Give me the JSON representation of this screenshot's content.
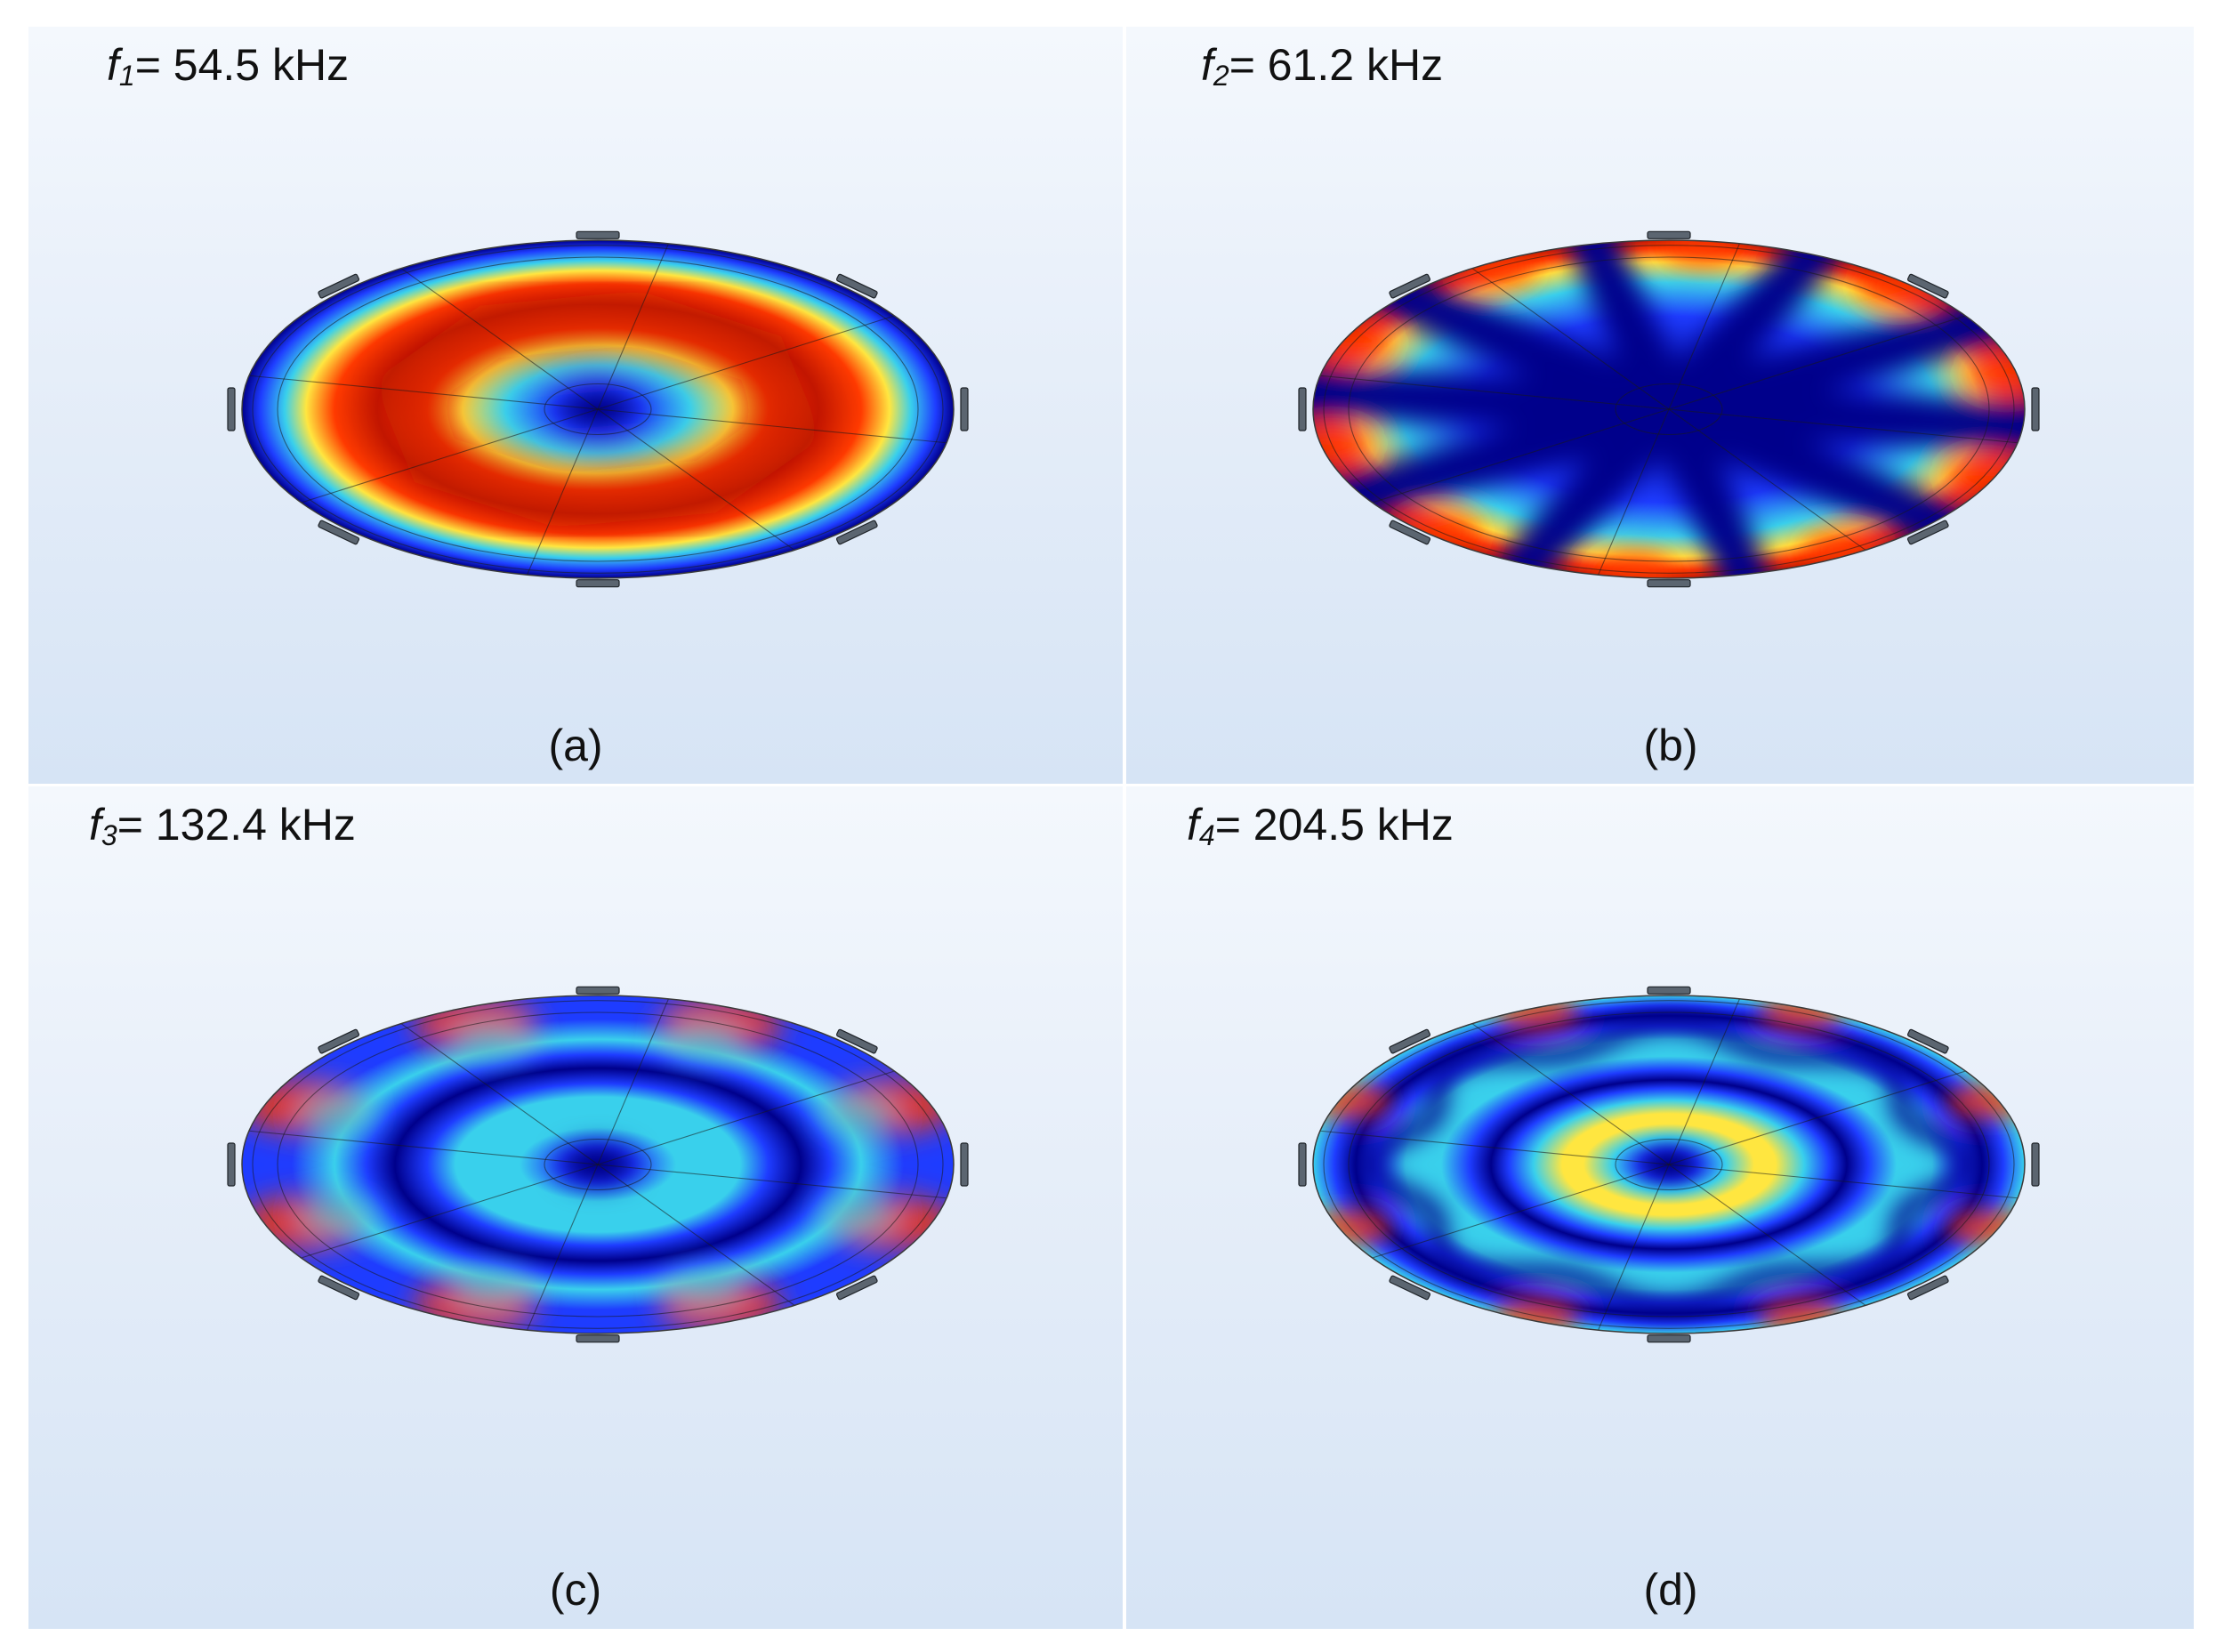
{
  "panels": [
    {
      "id": "a",
      "symbol": "f",
      "sub": "1",
      "value": "= 54.5 kHz",
      "caption": "(a)"
    },
    {
      "id": "b",
      "symbol": "f",
      "sub": "2",
      "value": "= 61.2 kHz",
      "caption": "(b)"
    },
    {
      "id": "c",
      "symbol": "f",
      "sub": "3",
      "value": "= 132.4 kHz",
      "caption": "(c)"
    },
    {
      "id": "d",
      "symbol": "f",
      "sub": "4",
      "value": "= 204.5 kHz",
      "caption": "(d)"
    }
  ],
  "colormap": [
    "#00008b",
    "#1e3cff",
    "#39d0ec",
    "#ffe640",
    "#ff3a00",
    "#c21a00"
  ]
}
